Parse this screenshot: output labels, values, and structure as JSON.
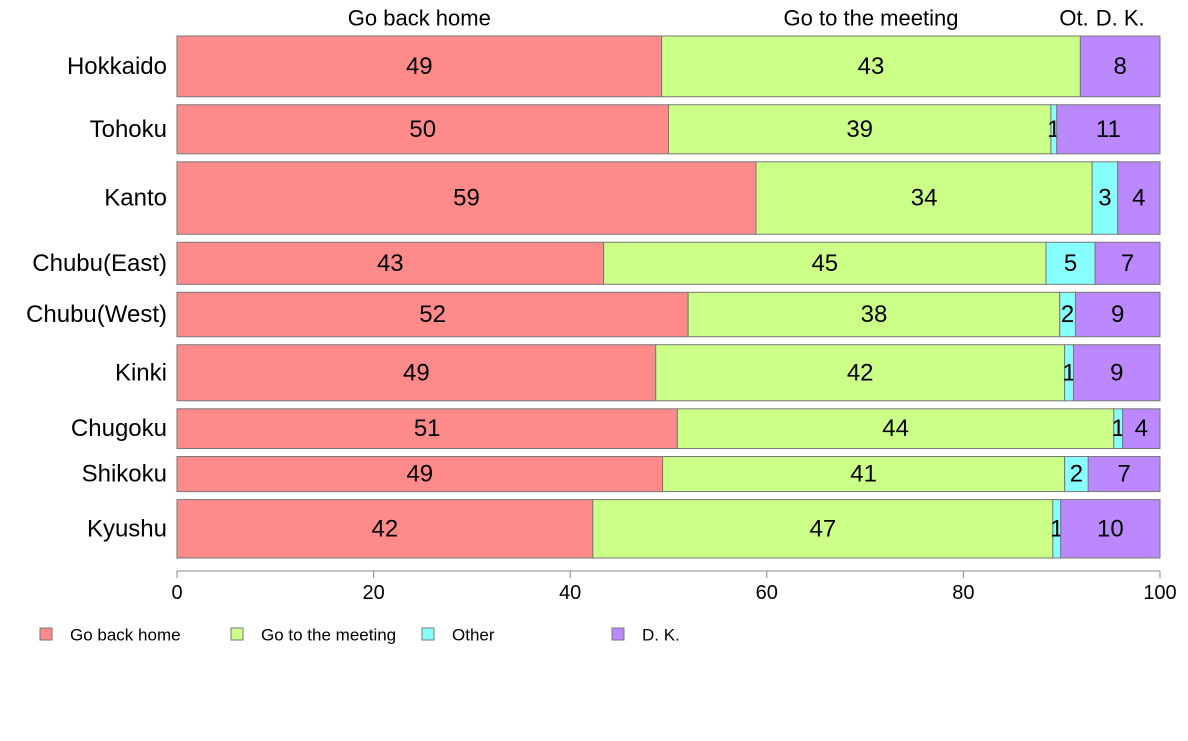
{
  "chart_data": {
    "type": "bar",
    "orientation": "horizontal",
    "stacked": true,
    "normalized_percent": true,
    "categories": [
      "Hokkaido",
      "Tohoku",
      "Kanto",
      "Chubu(East)",
      "Chubu(West)",
      "Kinki",
      "Chugoku",
      "Shikoku",
      "Kyushu"
    ],
    "category_weights": [
      1.3,
      1.05,
      1.55,
      0.9,
      0.95,
      1.2,
      0.85,
      0.75,
      1.25
    ],
    "series": [
      {
        "name": "Go back home",
        "color": "#FF8A8A",
        "values": [
          49.3,
          50.0,
          58.9,
          43.4,
          52.0,
          48.7,
          50.9,
          49.4,
          42.3
        ],
        "labels": [
          "49",
          "50",
          "59",
          "43",
          "52",
          "49",
          "51",
          "49",
          "42"
        ]
      },
      {
        "name": "Go to the meeting",
        "color": "#CCFF88",
        "values": [
          42.6,
          38.9,
          34.2,
          45.0,
          37.8,
          41.6,
          44.4,
          40.9,
          46.8
        ],
        "labels": [
          "43",
          "39",
          "34",
          "45",
          "38",
          "42",
          "44",
          "41",
          "47"
        ]
      },
      {
        "name": "Other",
        "color": "#88FFFF",
        "values": [
          0.0,
          0.6,
          2.6,
          5.0,
          1.6,
          0.9,
          0.9,
          2.4,
          0.8
        ],
        "labels": [
          "",
          "1",
          "3",
          "5",
          "2",
          "1",
          "1",
          "2",
          "1"
        ]
      },
      {
        "name": "D. K.",
        "color": "#BB88FF",
        "values": [
          8.1,
          10.5,
          4.3,
          6.6,
          8.6,
          8.8,
          3.8,
          7.3,
          10.1
        ],
        "labels": [
          "8",
          "11",
          "4",
          "7",
          "9",
          "9",
          "4",
          "7",
          "10"
        ]
      }
    ],
    "top_labels": [
      "Go back home",
      "Go to the meeting",
      "Ot.",
      "D. K."
    ],
    "xlim": [
      0,
      100
    ],
    "xticks": [
      0,
      20,
      40,
      60,
      80,
      100
    ],
    "grid": false,
    "legend_position": "bottom"
  }
}
